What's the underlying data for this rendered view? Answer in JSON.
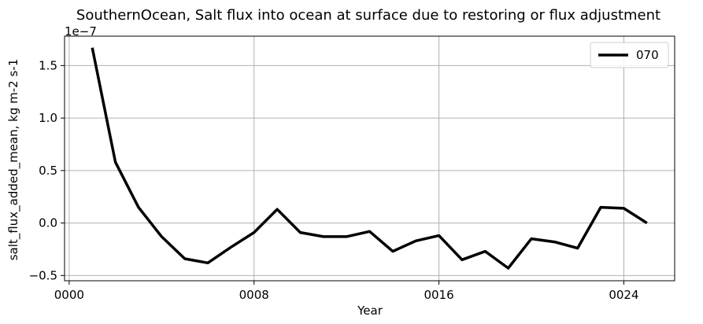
{
  "chart_data": {
    "type": "line",
    "title": "SouthernOcean, Salt flux into ocean at surface due to restoring or flux adjustment",
    "xlabel": "Year",
    "ylabel": "salt_flux_added_mean, kg m-2 s-1",
    "offset_text": "1e−7",
    "y_scale_exponent": -7,
    "xlim": [
      -0.2,
      26.2
    ],
    "ylim": [
      -0.55,
      1.78
    ],
    "x_ticks": [
      0,
      8,
      16,
      24
    ],
    "x_tick_labels": [
      "0000",
      "0008",
      "0016",
      "0024"
    ],
    "y_ticks": [
      -0.5,
      0.0,
      0.5,
      1.0,
      1.5
    ],
    "y_tick_labels": [
      "−0.5",
      "0.0",
      "0.5",
      "1.0",
      "1.5"
    ],
    "grid": true,
    "legend_position": "top-right",
    "series": [
      {
        "name": "070",
        "color": "#000000",
        "x": [
          1,
          2,
          3,
          4,
          5,
          6,
          7,
          8,
          9,
          10,
          11,
          12,
          13,
          14,
          15,
          16,
          17,
          18,
          19,
          20,
          21,
          22,
          23,
          24,
          25
        ],
        "y": [
          1.67,
          0.58,
          0.15,
          -0.13,
          -0.34,
          -0.38,
          -0.23,
          -0.09,
          0.13,
          -0.09,
          -0.13,
          -0.13,
          -0.08,
          -0.27,
          -0.17,
          -0.12,
          -0.35,
          -0.27,
          -0.43,
          -0.15,
          -0.18,
          -0.24,
          0.15,
          0.14,
          0.0
        ]
      }
    ]
  }
}
